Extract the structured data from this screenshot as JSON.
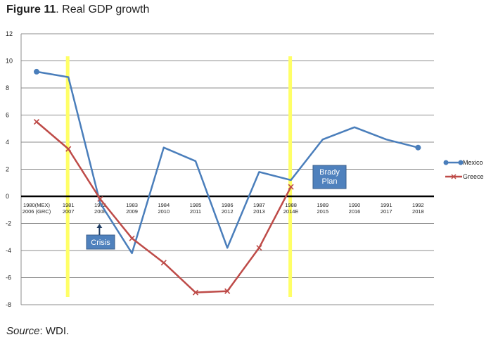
{
  "figure": {
    "title_label": "Figure 11",
    "title_text": ". Real GDP growth",
    "source_label": "Source",
    "source_text": ": WDI."
  },
  "chart_data": {
    "type": "line",
    "title": "Real GDP growth",
    "xlabel": "",
    "ylabel": "",
    "ylim": [
      -8,
      12
    ],
    "yticks": [
      -8,
      -6,
      -4,
      -2,
      0,
      2,
      4,
      6,
      8,
      10,
      12
    ],
    "grid": true,
    "categories": [
      [
        "1980(MEX)",
        "2006 (GRC)"
      ],
      [
        "1981",
        "2007"
      ],
      [
        "1982",
        "2008"
      ],
      [
        "1983",
        "2009"
      ],
      [
        "1984",
        "2010"
      ],
      [
        "1985",
        "2011"
      ],
      [
        "1986",
        "2012"
      ],
      [
        "1987",
        "2013"
      ],
      [
        "1988",
        "2014E"
      ],
      [
        "1989",
        "2015"
      ],
      [
        "1990",
        "2016"
      ],
      [
        "1991",
        "2017"
      ],
      [
        "1992",
        "2018"
      ]
    ],
    "series": [
      {
        "name": "Mexico",
        "color": "#4a7ebb",
        "marker": "circle",
        "values": [
          9.2,
          8.8,
          -0.5,
          -4.2,
          3.6,
          2.6,
          -3.8,
          1.8,
          1.2,
          4.2,
          5.1,
          4.2,
          3.6
        ]
      },
      {
        "name": "Greece",
        "color": "#be4b48",
        "marker": "x",
        "values": [
          5.5,
          3.5,
          -0.2,
          -3.1,
          -4.9,
          -7.1,
          -7.0,
          -3.8,
          0.7,
          null,
          null,
          null,
          null
        ]
      }
    ],
    "legend_position": "right",
    "highlight_bars": [
      {
        "category_index": 1,
        "color": "#ffff66"
      },
      {
        "category_index": 8,
        "color": "#ffff66"
      }
    ],
    "annotations": [
      {
        "lines": [
          "Crisis"
        ],
        "category_index": 2,
        "arrow": "up"
      },
      {
        "lines": [
          "Brady",
          "Plan"
        ],
        "category_index": 9,
        "arrow": "none"
      }
    ]
  }
}
